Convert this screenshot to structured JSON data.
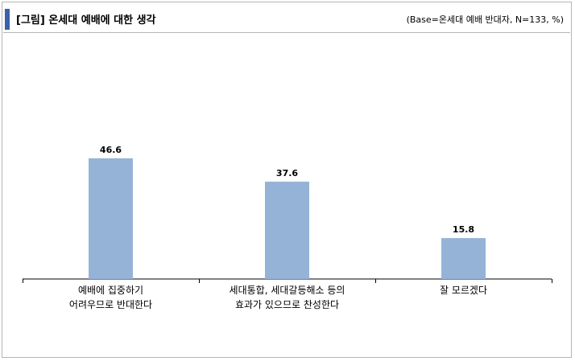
{
  "header": {
    "title": "[그림] 온세대 예배에 대한 생각",
    "note": "(Base=온세대 예배 반대자, N=133, %)"
  },
  "colors": {
    "bar": "#95b3d7",
    "accent": "#3a62a8",
    "frame": "#b5b5b5"
  },
  "chart_data": {
    "type": "bar",
    "title": "[그림] 온세대 예배에 대한 생각",
    "categories": [
      "예배에 집중하기\n어려우므로 반대한다",
      "세대통합, 세대갈등해소 등의\n효과가 있으므로 찬성한다",
      "잘 모르겠다"
    ],
    "values": [
      46.6,
      37.6,
      15.8
    ],
    "value_labels": [
      "46.6",
      "37.6",
      "15.8"
    ],
    "ylim": [
      0,
      60
    ],
    "grid": false,
    "legend": "none"
  }
}
